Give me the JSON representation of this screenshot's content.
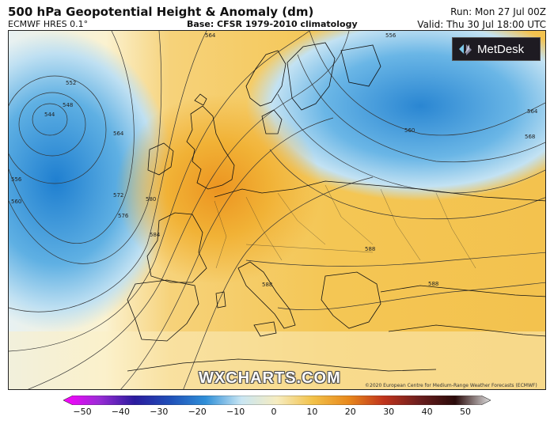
{
  "header": {
    "title": "500 hPa Geopotential Height & Anomaly (dm)",
    "model": "ECMWF HRES 0.1°",
    "base": "Base: CFSR 1979-2010 climatology",
    "run": "Run: Mon 27 Jul 00Z",
    "valid": "Valid: Thu 30 Jul 18:00 UTC"
  },
  "logo": {
    "text": "MetDesk",
    "icon": "metdesk-logo-icon"
  },
  "watermark": "WXCHARTS.COM",
  "credit": "©2020 European Centre for Medium-Range Weather Forecasts (ECMWF)",
  "contour_labels": [
    "544",
    "548",
    "552",
    "556",
    "560",
    "564",
    "572",
    "576",
    "580",
    "584",
    "588",
    "564",
    "560",
    "564",
    "568",
    "556",
    "588",
    "588"
  ],
  "colorbar": {
    "ticks": [
      "−50",
      "−40",
      "−30",
      "−20",
      "−10",
      "0",
      "10",
      "20",
      "30",
      "40",
      "50"
    ],
    "colors": [
      "#ff00ff",
      "#9b2bd6",
      "#2a1b9e",
      "#1f4fb8",
      "#2f8fd8",
      "#c9e6f3",
      "#f6ecc0",
      "#f2c24a",
      "#e8891c",
      "#c0331c",
      "#6b1e1e",
      "#2a0a0a",
      "#dddddd"
    ]
  }
}
